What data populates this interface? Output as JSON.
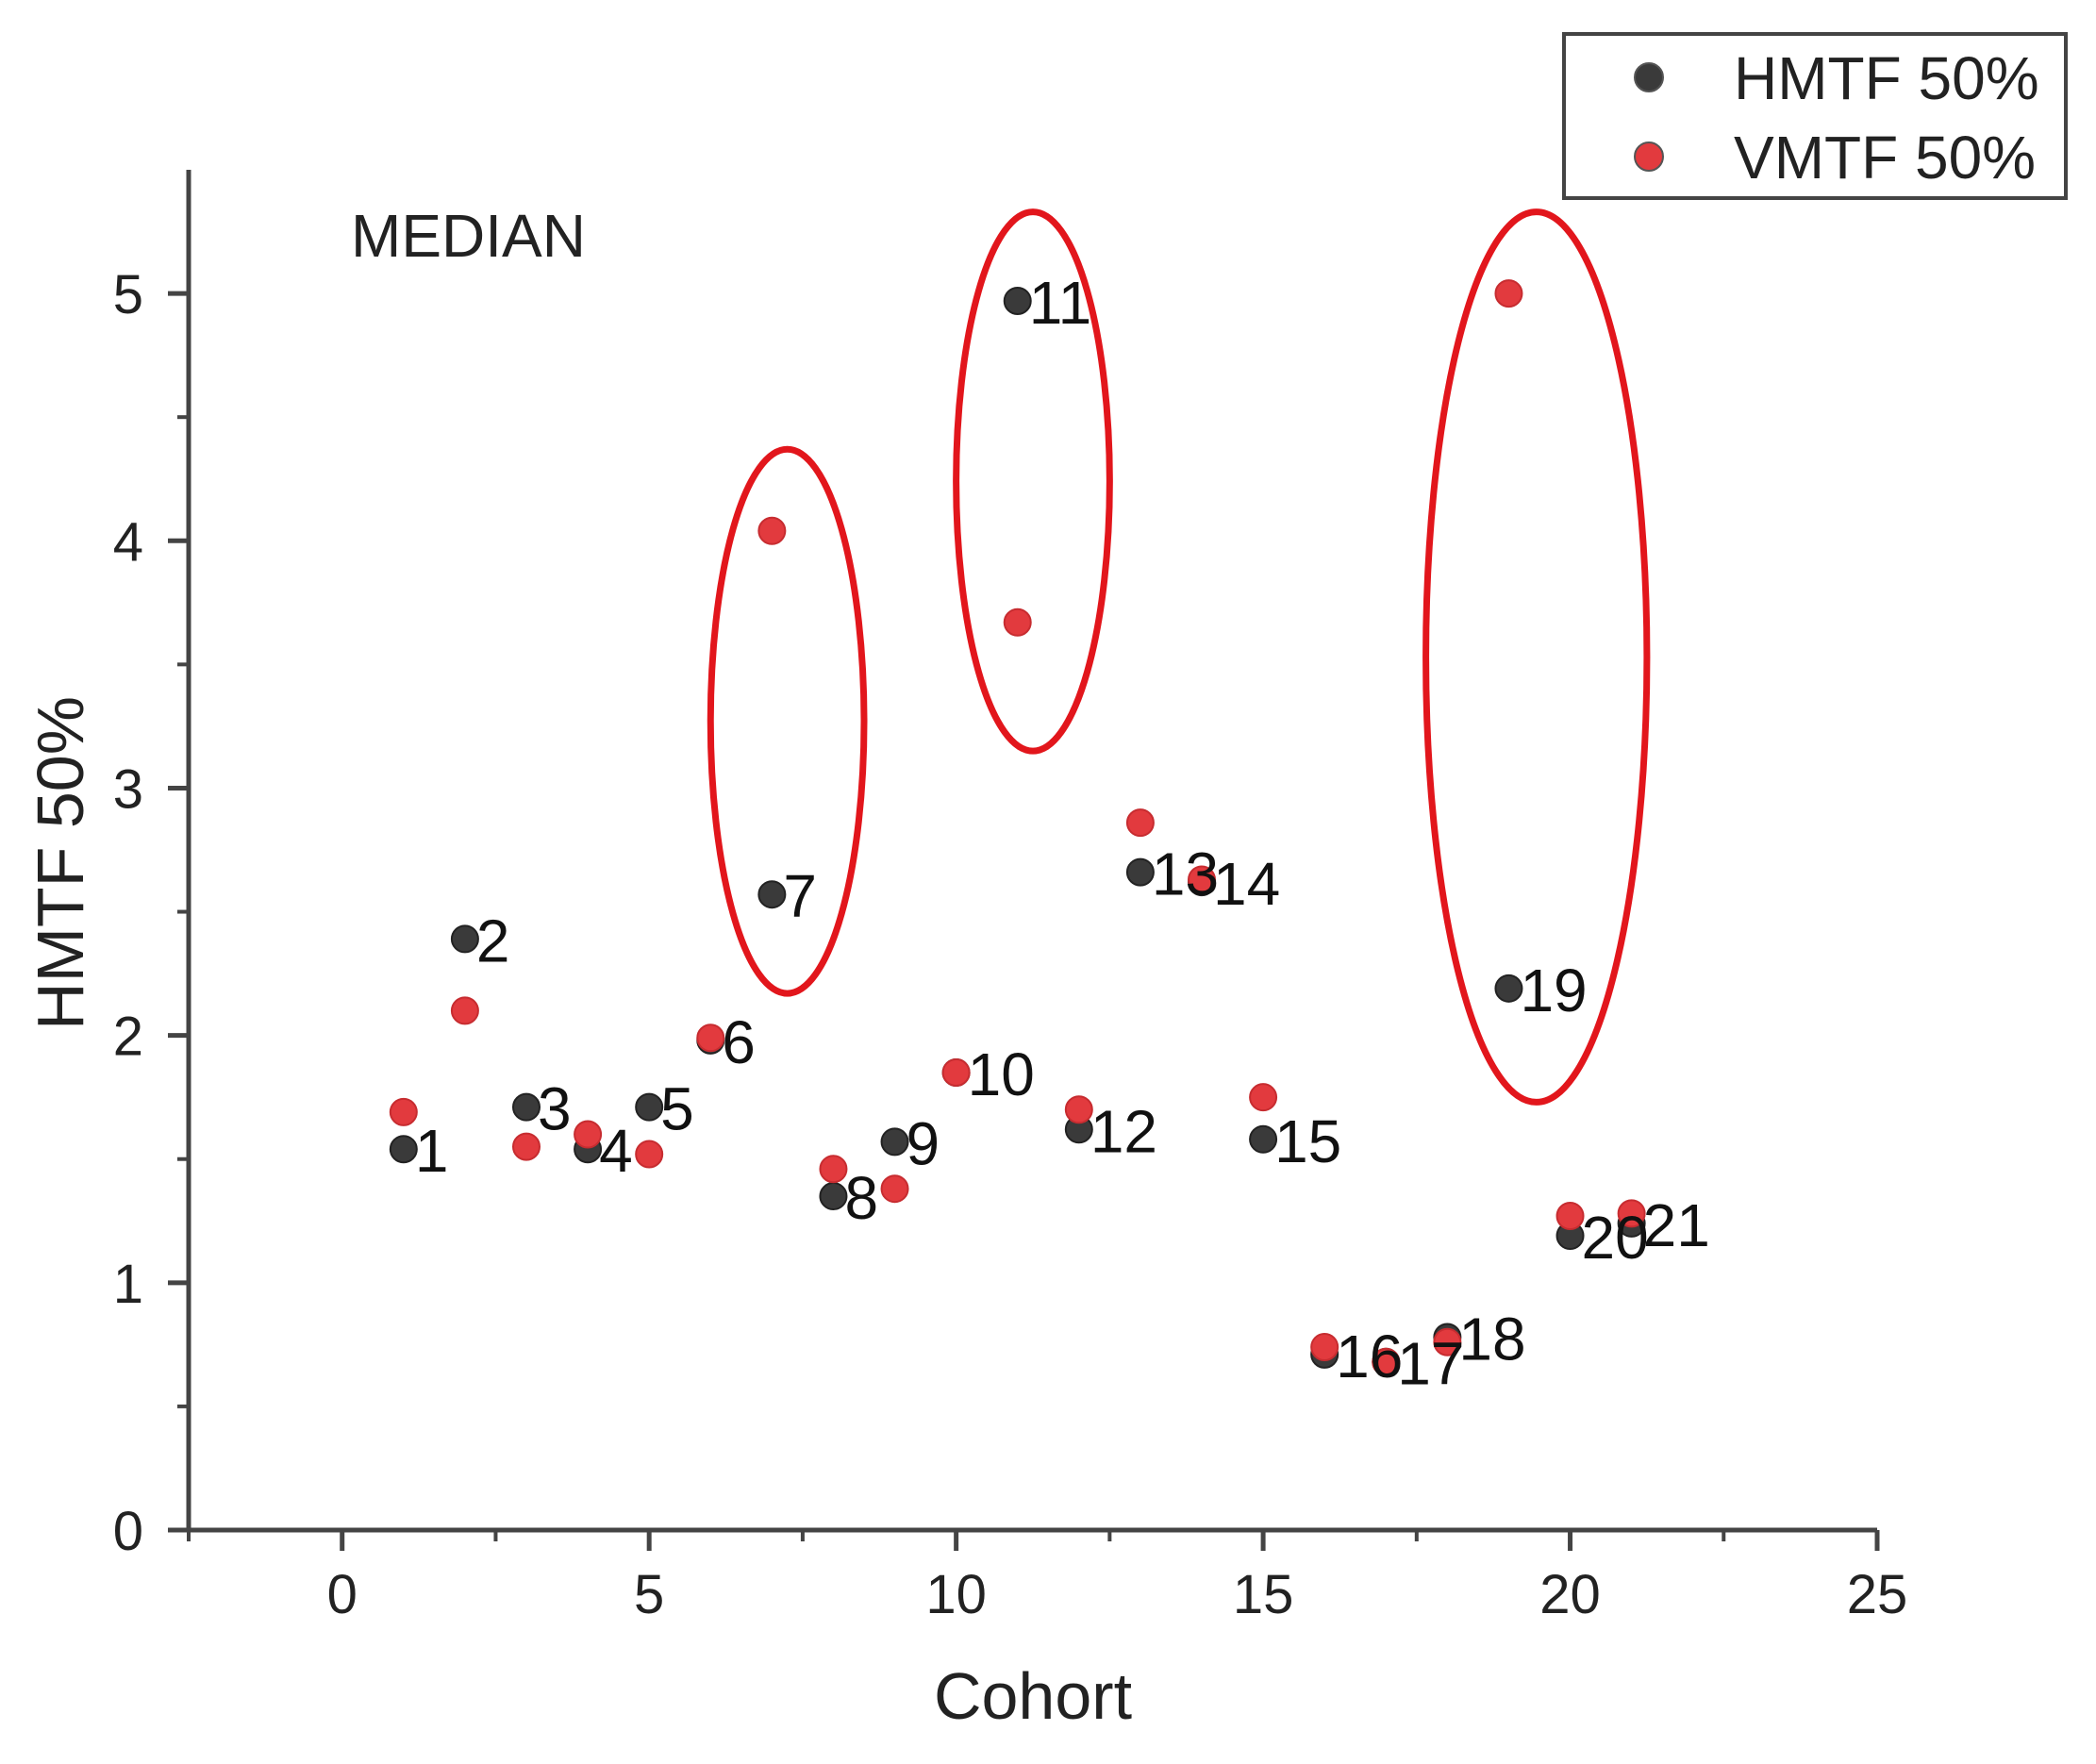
{
  "chart_data": {
    "type": "scatter",
    "title": "",
    "annotation": "MEDIAN",
    "xlabel": "Cohort",
    "ylabel": "HMTF 50%",
    "xlim": [
      -2.5,
      25
    ],
    "ylim": [
      0,
      5.5
    ],
    "x_ticks": [
      0,
      5,
      10,
      15,
      20,
      25
    ],
    "y_ticks": [
      0,
      1,
      2,
      3,
      4,
      5
    ],
    "grid": false,
    "legend_position": "top-right",
    "series": [
      {
        "name": "HMTF 50%",
        "color": "#3a3a3a",
        "points": [
          {
            "x": 1,
            "y": 1.54,
            "label": "1"
          },
          {
            "x": 2,
            "y": 2.39,
            "label": "2"
          },
          {
            "x": 3,
            "y": 1.71,
            "label": "3"
          },
          {
            "x": 4,
            "y": 1.54,
            "label": "4"
          },
          {
            "x": 5,
            "y": 1.71,
            "label": "5"
          },
          {
            "x": 6,
            "y": 1.98,
            "label": "6"
          },
          {
            "x": 7,
            "y": 2.57,
            "label": "7"
          },
          {
            "x": 8,
            "y": 1.35,
            "label": "8"
          },
          {
            "x": 9,
            "y": 1.57,
            "label": "9"
          },
          {
            "x": 10,
            "y": 1.85,
            "label": "10"
          },
          {
            "x": 11,
            "y": 4.97,
            "label": "11"
          },
          {
            "x": 12,
            "y": 1.62,
            "label": "12"
          },
          {
            "x": 13,
            "y": 2.66,
            "label": "13"
          },
          {
            "x": 14,
            "y": 2.62,
            "label": "14"
          },
          {
            "x": 15,
            "y": 1.58,
            "label": "15"
          },
          {
            "x": 16,
            "y": 0.71,
            "label": "16"
          },
          {
            "x": 17,
            "y": 0.68,
            "label": "17"
          },
          {
            "x": 18,
            "y": 0.78,
            "label": "18"
          },
          {
            "x": 19,
            "y": 2.19,
            "label": "19"
          },
          {
            "x": 20,
            "y": 1.19,
            "label": "20"
          },
          {
            "x": 21,
            "y": 1.24,
            "label": "21"
          }
        ]
      },
      {
        "name": "VMTF 50%",
        "color": "#e23a3e",
        "points": [
          {
            "x": 1,
            "y": 1.69
          },
          {
            "x": 2,
            "y": 2.1
          },
          {
            "x": 3,
            "y": 1.55
          },
          {
            "x": 4,
            "y": 1.6
          },
          {
            "x": 5,
            "y": 1.52
          },
          {
            "x": 6,
            "y": 1.99
          },
          {
            "x": 7,
            "y": 4.04
          },
          {
            "x": 8,
            "y": 1.46
          },
          {
            "x": 9,
            "y": 1.38
          },
          {
            "x": 10,
            "y": 1.85
          },
          {
            "x": 11,
            "y": 3.67
          },
          {
            "x": 12,
            "y": 1.7
          },
          {
            "x": 13,
            "y": 2.86
          },
          {
            "x": 14,
            "y": 2.63
          },
          {
            "x": 15,
            "y": 1.75
          },
          {
            "x": 16,
            "y": 0.74
          },
          {
            "x": 17,
            "y": 0.68
          },
          {
            "x": 18,
            "y": 0.76
          },
          {
            "x": 19,
            "y": 5.0
          },
          {
            "x": 20,
            "y": 1.27
          },
          {
            "x": 21,
            "y": 1.28
          }
        ]
      }
    ],
    "highlights": [
      {
        "x_center": 7.25,
        "y_center": 3.27,
        "x_radius": 1.25,
        "y_radius": 1.1,
        "color": "#e2161c"
      },
      {
        "x_center": 11.25,
        "y_center": 4.24,
        "x_radius": 1.25,
        "y_radius": 1.09,
        "color": "#e2161c"
      },
      {
        "x_center": 19.45,
        "y_center": 3.53,
        "x_radius": 1.8,
        "y_radius": 1.8,
        "color": "#e2161c"
      }
    ]
  }
}
